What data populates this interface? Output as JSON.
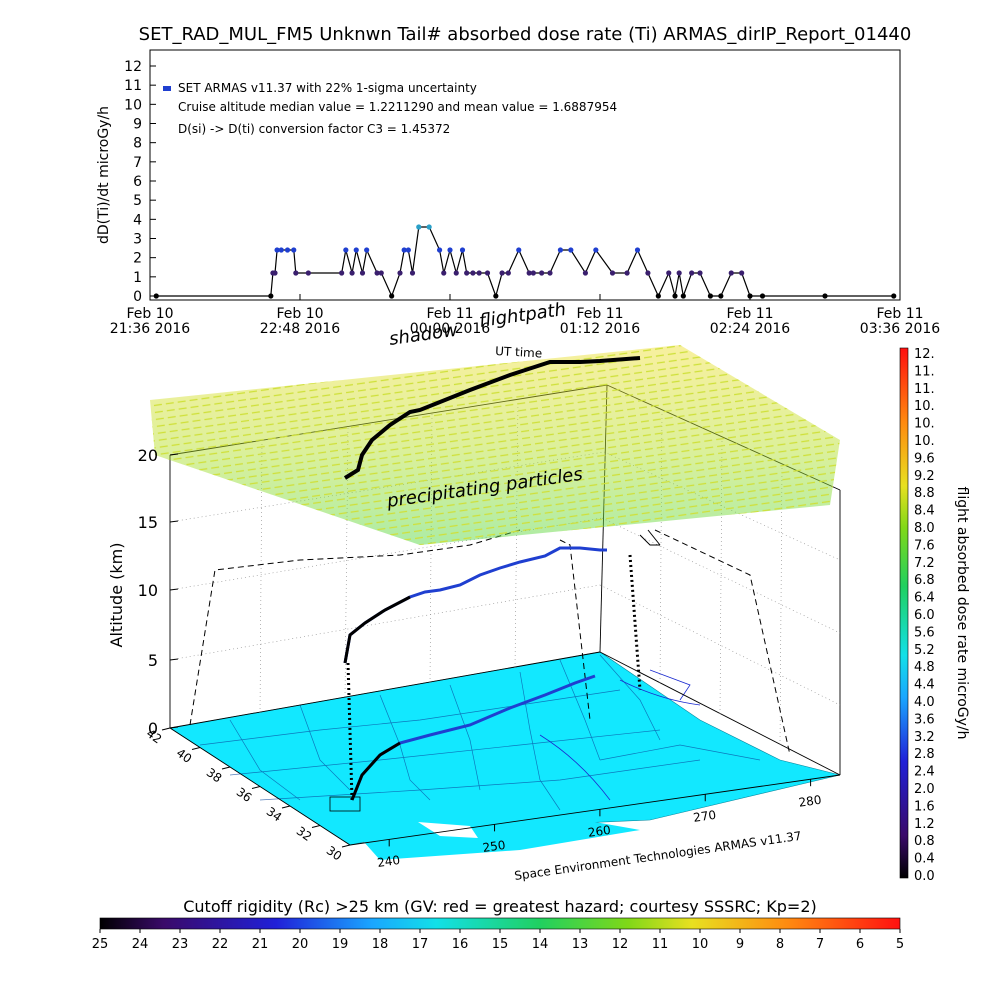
{
  "title": "SET_RAD_MUL_FM5 Unknwn Tail#  absorbed dose rate (Ti) ARMAS_dirIP_Report_01440",
  "top_chart": {
    "ylabel": "dD(Ti)/dt microGy/h",
    "yticks": [
      "0",
      "1",
      "2",
      "3",
      "4",
      "5",
      "6",
      "7",
      "8",
      "9",
      "10",
      "11",
      "12"
    ],
    "legend": {
      "series_label": "SET ARMAS v11.37 with 22% 1-sigma uncertainty",
      "cruise_stats": "Cruise altitude median value = 1.2211290 and mean value = 1.6887954",
      "conversion": "D(si) -> D(ti) conversion factor C3 = 1.45372"
    },
    "xticks": [
      {
        "l1": "Feb 10",
        "l2": "21:36 2016"
      },
      {
        "l1": "Feb 10",
        "l2": "22:48 2016"
      },
      {
        "l1": "Feb 11",
        "l2": "00:00 2016"
      },
      {
        "l1": "Feb 11",
        "l2": "01:12 2016"
      },
      {
        "l1": "Feb 11",
        "l2": "02:24 2016"
      },
      {
        "l1": "Feb 11",
        "l2": "03:36 2016"
      }
    ]
  },
  "scene3d": {
    "label_shadow": "shadow",
    "label_flightpath": "flightpath",
    "label_ut": "UT time",
    "label_precip": "precipitating particles",
    "zlabel": "Altitude (km)",
    "zticks": [
      "0",
      "5",
      "10",
      "15",
      "20"
    ],
    "lat_ticks": [
      "42",
      "40",
      "38",
      "36",
      "34",
      "32",
      "30"
    ],
    "lon_ticks": [
      "240",
      "250",
      "260",
      "270",
      "280"
    ],
    "credit": "Space Environment Technologies ARMAS v11.37"
  },
  "right_colorbar": {
    "label": "flight absorbed dose rate microGy/h",
    "ticks": [
      "12.",
      "11.",
      "11.",
      "10.",
      "10.",
      "10.",
      "9.6",
      "9.2",
      "8.8",
      "8.4",
      "8.0",
      "7.6",
      "7.2",
      "6.8",
      "6.4",
      "6.0",
      "5.6",
      "5.2",
      "4.8",
      "4.4",
      "4.0",
      "3.6",
      "3.2",
      "2.8",
      "2.4",
      "2.0",
      "1.6",
      "1.2",
      "0.8",
      "0.4",
      "0.0"
    ]
  },
  "bottom_colorbar": {
    "title": "Cutoff rigidity (Rc) >25 km (GV: red = greatest hazard; courtesy SSSRC; Kp=2)",
    "ticks": [
      "25",
      "24",
      "23",
      "22",
      "21",
      "20",
      "19",
      "18",
      "17",
      "16",
      "15",
      "14",
      "13",
      "12",
      "11",
      "10",
      "9",
      "8",
      "7",
      "6",
      "5"
    ]
  },
  "colors": {
    "track": "#3a1f6e",
    "high": "#1f3fd0",
    "peak": "#2aa0c8",
    "ground": "#12e8ff",
    "cap": "#8fd81e"
  },
  "chart_data": {
    "type": "line",
    "title": "SET_RAD_MUL_FM5 Unknwn Tail#  absorbed dose rate (Ti) ARMAS_dirIP_Report_01440",
    "xlabel": "",
    "ylabel": "dD(Ti)/dt microGy/h",
    "xlim": [
      "2016-02-10 21:36",
      "2016-02-11 03:36"
    ],
    "ylim": [
      0,
      12
    ],
    "series": [
      {
        "name": "SET ARMAS v11.37 with 22% 1-sigma uncertainty",
        "t": [
          "21:39",
          "22:34",
          "22:35",
          "22:36",
          "22:37",
          "22:39",
          "22:42",
          "22:45",
          "22:46",
          "22:52",
          "23:08",
          "23:10",
          "23:13",
          "23:15",
          "23:18",
          "23:20",
          "23:25",
          "23:27",
          "23:32",
          "23:36",
          "23:38",
          "23:40",
          "23:42",
          "23:45",
          "23:50",
          "23:55",
          "23:57",
          "00:00",
          "00:03",
          "00:06",
          "00:08",
          "00:11",
          "00:14",
          "00:18",
          "00:22",
          "00:25",
          "00:28",
          "00:33",
          "00:38",
          "00:40",
          "00:44",
          "00:48",
          "00:53",
          "00:58",
          "01:05",
          "01:10",
          "01:18",
          "01:25",
          "01:30",
          "01:35",
          "01:40",
          "01:45",
          "01:48",
          "01:50",
          "01:52",
          "01:56",
          "02:00",
          "02:05",
          "02:10",
          "02:15",
          "02:20",
          "02:24",
          "02:30",
          "03:00",
          "03:33"
        ],
        "values": [
          0,
          0,
          1.2,
          1.2,
          2.4,
          2.4,
          2.4,
          2.4,
          1.2,
          1.2,
          1.2,
          2.4,
          1.2,
          2.4,
          1.2,
          2.4,
          1.2,
          1.2,
          0,
          1.2,
          2.4,
          2.4,
          1.2,
          3.6,
          3.6,
          2.4,
          1.2,
          2.4,
          1.2,
          2.4,
          1.2,
          1.2,
          1.2,
          1.2,
          0,
          1.2,
          1.2,
          2.4,
          1.2,
          1.2,
          1.2,
          1.2,
          2.4,
          2.4,
          1.2,
          2.4,
          1.2,
          1.2,
          2.4,
          1.2,
          0,
          1.2,
          0,
          1.2,
          0,
          1.2,
          1.2,
          0,
          0,
          1.2,
          1.2,
          0,
          0,
          0,
          0
        ]
      }
    ]
  }
}
